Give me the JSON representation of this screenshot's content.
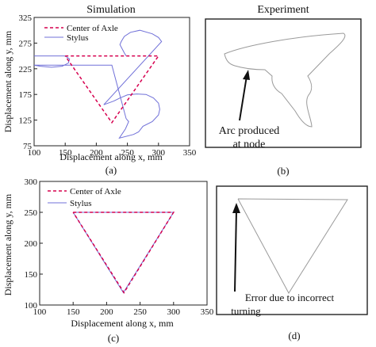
{
  "headings": {
    "simulation": "Simulation",
    "experiment": "Experiment"
  },
  "panel_labels": {
    "a": "(a)",
    "b": "(b)",
    "c": "(c)",
    "d": "(d)"
  },
  "colors": {
    "axle": "#d6004f",
    "stylus": "#7070d8",
    "frame": "#222222",
    "sketch": "#9a9a9a"
  },
  "annotations": {
    "b_arc": [
      "Arc produced",
      "at node"
    ],
    "d_error": [
      "Error due to incorrect",
      "turning"
    ]
  },
  "chart_data": [
    {
      "id": "a",
      "type": "line",
      "xlabel": "Displacement along x, mm",
      "ylabel": "Displacement along y, mm",
      "xlim": [
        100,
        350
      ],
      "ylim": [
        75,
        325
      ],
      "xticks": [
        100,
        150,
        200,
        250,
        300,
        350
      ],
      "yticks": [
        75,
        125,
        175,
        225,
        275,
        325
      ],
      "legend": "top-left",
      "series": [
        {
          "name": "Center of Axle",
          "style": "dashed",
          "color": "#d6004f",
          "x": [
            150,
            300,
            225,
            150
          ],
          "y": [
            250,
            250,
            120,
            250
          ]
        },
        {
          "name": "Stylus",
          "style": "solid",
          "color": "#7070d8",
          "x": [
            100,
            150,
            157,
            155,
            145,
            128,
            110,
            100,
            225,
            248,
            252,
            247,
            237,
            260,
            268,
            275,
            290,
            300,
            302,
            300,
            292,
            280,
            265,
            250,
            238,
            228,
            212,
            305,
            300,
            290,
            270,
            255,
            245,
            240,
            238,
            245,
            248
          ],
          "y": [
            250,
            250,
            244,
            236,
            230,
            228,
            230,
            232,
            232,
            128,
            122,
            108,
            90,
            97,
            102,
            113,
            122,
            135,
            146,
            158,
            168,
            175,
            176,
            174,
            168,
            162,
            155,
            278,
            286,
            293,
            300,
            296,
            288,
            278,
            272,
            256,
            250
          ]
        }
      ]
    },
    {
      "id": "c",
      "type": "line",
      "xlabel": "Displacement along x, mm",
      "ylabel": "Displacement along y, mm",
      "xlim": [
        100,
        350
      ],
      "ylim": [
        100,
        300
      ],
      "xticks": [
        100,
        150,
        200,
        250,
        300,
        350
      ],
      "yticks": [
        100,
        150,
        200,
        250,
        300
      ],
      "legend": "top-left",
      "series": [
        {
          "name": "Center of Axle",
          "style": "dashed",
          "color": "#d6004f",
          "x": [
            150,
            300,
            226,
            150
          ],
          "y": [
            250,
            250,
            120,
            250
          ]
        },
        {
          "name": "Stylus",
          "style": "solid",
          "color": "#7070d8",
          "x": [
            150,
            300,
            225,
            150
          ],
          "y": [
            250,
            250,
            120,
            250
          ]
        }
      ]
    }
  ]
}
